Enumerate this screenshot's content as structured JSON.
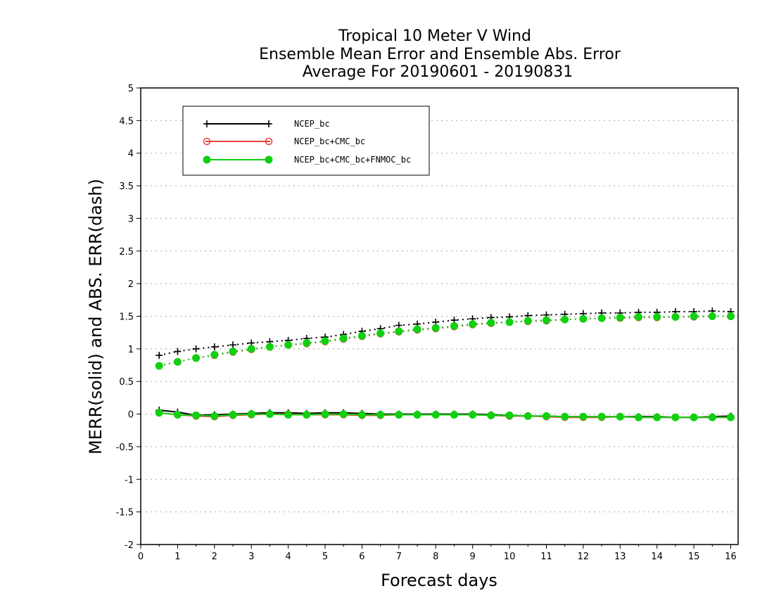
{
  "chart_data": {
    "type": "line",
    "title_lines": [
      "Tropical 10 Meter V Wind",
      "Ensemble Mean Error and Ensemble Abs. Error",
      "Average For 20190601 - 20190831"
    ],
    "xlabel": "Forecast days",
    "ylabel": "MERR(solid) and ABS. ERR(dash)",
    "xlim": [
      0,
      16.2
    ],
    "ylim": [
      -2,
      5
    ],
    "x_ticks": [
      "0",
      "1",
      "2",
      "3",
      "4",
      "5",
      "6",
      "7",
      "8",
      "9",
      "10",
      "11",
      "12",
      "13",
      "14",
      "15",
      "16"
    ],
    "y_ticks": [
      "5",
      "4.5",
      "4",
      "3.5",
      "3",
      "2.5",
      "2",
      "1.5",
      "1",
      "0.5",
      "0",
      "-0.5",
      "-1",
      "-1.5",
      "-2"
    ],
    "grid": true,
    "legend_position": "top-left",
    "x": [
      0.5,
      1,
      1.5,
      2,
      2.5,
      3,
      3.5,
      4,
      4.5,
      5,
      5.5,
      6,
      6.5,
      7,
      7.5,
      8,
      8.5,
      9,
      9.5,
      10,
      10.5,
      11,
      11.5,
      12,
      12.5,
      13,
      13.5,
      14,
      14.5,
      15,
      15.5,
      16
    ],
    "series": [
      {
        "name": "NCEP_bc",
        "color": "#000000",
        "marker": "plus",
        "merr": [
          0.06,
          0.03,
          -0.02,
          -0.01,
          0.0,
          0.01,
          0.02,
          0.02,
          0.01,
          0.02,
          0.02,
          0.01,
          0.0,
          0.0,
          0.0,
          0.0,
          0.0,
          0.0,
          -0.01,
          -0.02,
          -0.03,
          -0.03,
          -0.04,
          -0.04,
          -0.04,
          -0.04,
          -0.04,
          -0.04,
          -0.05,
          -0.05,
          -0.04,
          -0.03
        ],
        "abs_err": [
          0.9,
          0.96,
          1.0,
          1.03,
          1.06,
          1.09,
          1.11,
          1.13,
          1.16,
          1.18,
          1.22,
          1.27,
          1.31,
          1.36,
          1.38,
          1.41,
          1.44,
          1.46,
          1.48,
          1.49,
          1.51,
          1.52,
          1.53,
          1.54,
          1.55,
          1.55,
          1.56,
          1.56,
          1.57,
          1.57,
          1.58,
          1.57
        ]
      },
      {
        "name": "NCEP_bc+CMC_bc",
        "color": "#e8413c",
        "marker": "open-circle",
        "merr": [
          0.02,
          -0.01,
          -0.03,
          -0.04,
          -0.02,
          -0.01,
          0.0,
          0.0,
          -0.01,
          -0.01,
          -0.01,
          -0.02,
          -0.02,
          -0.01,
          -0.01,
          -0.01,
          -0.01,
          -0.01,
          -0.02,
          -0.03,
          -0.03,
          -0.04,
          -0.05,
          -0.05,
          -0.05,
          -0.04,
          -0.05,
          -0.05,
          -0.05,
          -0.05,
          -0.05,
          -0.05
        ],
        "abs_err": [
          0.74,
          0.8,
          0.86,
          0.9,
          0.95,
          0.99,
          1.03,
          1.06,
          1.08,
          1.11,
          1.15,
          1.19,
          1.23,
          1.26,
          1.29,
          1.31,
          1.34,
          1.37,
          1.39,
          1.41,
          1.42,
          1.43,
          1.45,
          1.46,
          1.47,
          1.47,
          1.48,
          1.48,
          1.49,
          1.49,
          1.5,
          1.5
        ]
      },
      {
        "name": "NCEP_bc+CMC_bc+FNMOC_bc",
        "color": "#10d010",
        "marker": "filled-circle",
        "merr": [
          0.02,
          -0.01,
          -0.02,
          -0.03,
          -0.01,
          0.0,
          0.0,
          -0.01,
          -0.01,
          0.0,
          0.0,
          -0.01,
          -0.01,
          -0.01,
          -0.01,
          -0.01,
          -0.01,
          -0.01,
          -0.02,
          -0.02,
          -0.03,
          -0.03,
          -0.04,
          -0.04,
          -0.04,
          -0.04,
          -0.05,
          -0.05,
          -0.05,
          -0.05,
          -0.05,
          -0.05
        ],
        "abs_err": [
          0.74,
          0.8,
          0.86,
          0.91,
          0.96,
          1.0,
          1.03,
          1.06,
          1.09,
          1.12,
          1.16,
          1.2,
          1.24,
          1.27,
          1.3,
          1.32,
          1.35,
          1.38,
          1.4,
          1.41,
          1.43,
          1.44,
          1.45,
          1.46,
          1.47,
          1.48,
          1.49,
          1.49,
          1.49,
          1.5,
          1.5,
          1.5
        ]
      }
    ]
  }
}
